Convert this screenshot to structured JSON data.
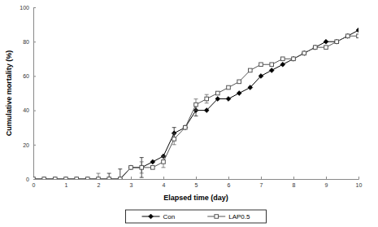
{
  "chart_data": {
    "type": "line",
    "x_label": "Elapsed time (day)",
    "y_label": "Cumulative mortality (%)",
    "x": [
      0,
      0.33,
      0.67,
      1,
      1.33,
      1.67,
      2,
      2.33,
      2.67,
      3,
      3.33,
      3.67,
      4,
      4.33,
      4.67,
      5,
      5.33,
      5.67,
      6,
      6.33,
      6.67,
      7,
      7.33,
      7.67,
      8,
      8.33,
      8.67,
      9,
      9.33,
      9.67,
      10
    ],
    "series": [
      {
        "name": "Con",
        "color": "#000000",
        "marker": "diamond",
        "values": [
          0,
          0,
          0,
          0,
          0,
          0,
          0,
          0,
          0,
          6.7,
          6.7,
          10,
          13.3,
          26.7,
          30,
          40,
          40,
          46.7,
          46.7,
          50,
          53.3,
          60,
          63.3,
          66.7,
          70,
          73.3,
          76.7,
          80,
          80,
          83.3,
          86.7
        ],
        "errors": [
          0,
          0,
          0,
          0,
          0,
          0,
          0,
          3.3,
          5.8,
          0,
          5.8,
          0,
          0,
          3.3,
          0,
          3.3,
          0,
          0,
          0,
          0,
          0,
          0,
          0,
          0,
          0,
          0,
          0,
          0,
          0,
          0,
          0
        ]
      },
      {
        "name": "LAP0.5",
        "color": "#555555",
        "marker": "square",
        "values": [
          0,
          0,
          0,
          0,
          0,
          0,
          0,
          0,
          0,
          6.7,
          6.7,
          6.7,
          10,
          23.3,
          30,
          43.3,
          46.7,
          50,
          53.3,
          56.7,
          63.3,
          66.7,
          66.7,
          70,
          70,
          73.3,
          76.7,
          76.7,
          80,
          83.3,
          83.3
        ],
        "errors": [
          0,
          0,
          0,
          0,
          0,
          0,
          3.3,
          0,
          0,
          0,
          3.3,
          0,
          3.3,
          3.3,
          0,
          3.3,
          2.5,
          0,
          0,
          0,
          0,
          0,
          0,
          0,
          0,
          0,
          0,
          0,
          0,
          0,
          0
        ]
      }
    ],
    "xlim": [
      0,
      10
    ],
    "xticks": [
      0,
      1,
      2,
      3,
      4,
      5,
      6,
      7,
      8,
      9,
      10
    ],
    "ylim": [
      0,
      100
    ],
    "yticks": [
      0,
      20,
      40,
      60,
      80,
      100
    ],
    "grid": false,
    "legend": "bottom"
  }
}
